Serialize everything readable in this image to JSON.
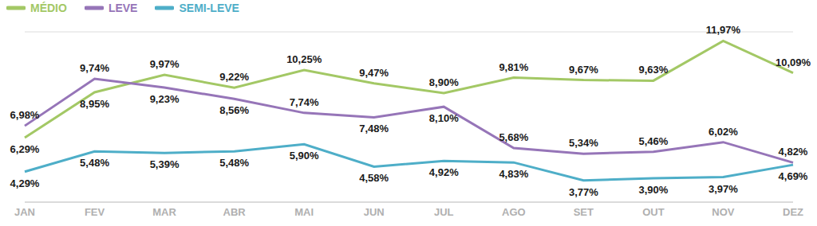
{
  "chart_data": {
    "type": "line",
    "categories": [
      "JAN",
      "FEV",
      "MAR",
      "ABR",
      "MAI",
      "JUN",
      "JUL",
      "AGO",
      "SET",
      "OUT",
      "NOV",
      "DEZ"
    ],
    "series": [
      {
        "name": "MÉDIO",
        "color": "#a3c865",
        "values": [
          6.29,
          8.95,
          9.97,
          9.22,
          10.25,
          9.47,
          8.9,
          9.81,
          9.67,
          9.63,
          11.97,
          10.09
        ],
        "value_labels": [
          "6,29%",
          "8,95%",
          "9,97%",
          "9,22%",
          "10,25%",
          "9,47%",
          "8,90%",
          "9,81%",
          "9,67%",
          "9,63%",
          "11,97%",
          "10,09%"
        ]
      },
      {
        "name": "LEVE",
        "color": "#9675b8",
        "values": [
          6.98,
          9.74,
          9.23,
          8.56,
          7.74,
          7.48,
          8.1,
          5.68,
          5.34,
          5.46,
          6.02,
          4.82
        ],
        "value_labels": [
          "6,98%",
          "9,74%",
          "9,23%",
          "8,56%",
          "7,74%",
          "7,48%",
          "8,10%",
          "5,68%",
          "5,34%",
          "5,46%",
          "6,02%",
          "4,82%"
        ]
      },
      {
        "name": "SEMI-LEVE",
        "color": "#4eaec8",
        "values": [
          4.29,
          5.48,
          5.39,
          5.48,
          5.9,
          4.58,
          4.92,
          4.83,
          3.77,
          3.9,
          3.97,
          4.69
        ],
        "value_labels": [
          "4,29%",
          "5,48%",
          "5,39%",
          "5,48%",
          "5,90%",
          "4,58%",
          "4,92%",
          "4,83%",
          "3,77%",
          "3,90%",
          "3,97%",
          "4,69%"
        ]
      }
    ],
    "ylim": [
      2.5,
      12.5
    ],
    "yticks": [
      6.25,
      9.375,
      12.5
    ],
    "grid": true,
    "legend": "top-left",
    "data_labels": true,
    "tick_labels": "x"
  }
}
